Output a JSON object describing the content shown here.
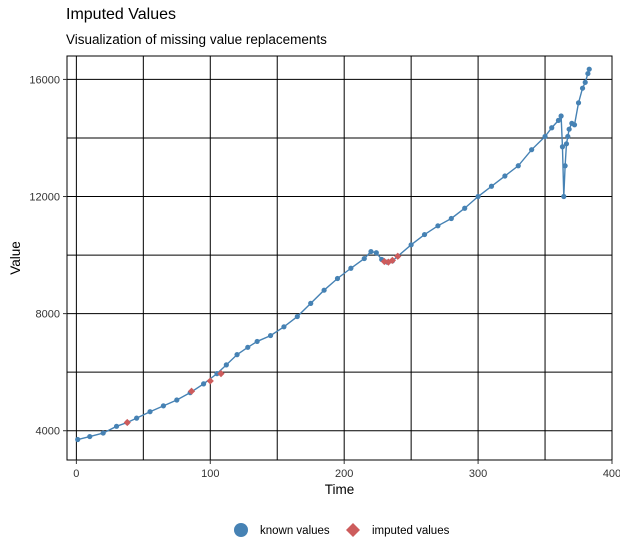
{
  "chart_data": {
    "type": "scatter",
    "title": "Imputed Values",
    "subtitle": "Visualization of missing value replacements",
    "xlabel": "Time",
    "ylabel": "Value",
    "xlim": [
      -7,
      400
    ],
    "ylim": [
      3000,
      16800
    ],
    "x_ticks": [
      0,
      100,
      200,
      300,
      400
    ],
    "y_ticks": [
      4000,
      8000,
      12000,
      16000
    ],
    "x_grid": [
      0,
      50,
      100,
      150,
      200,
      250,
      300,
      350,
      400
    ],
    "y_grid": [
      4000,
      6000,
      8000,
      10000,
      12000,
      14000,
      16000
    ],
    "grid": true,
    "legend_position": "bottom",
    "series": [
      {
        "name": "known values",
        "color": "#4682b4",
        "marker": "circle",
        "x": [
          1,
          10,
          20,
          30,
          38,
          45,
          55,
          65,
          75,
          85,
          95,
          105,
          112,
          120,
          128,
          135,
          145,
          155,
          165,
          175,
          185,
          195,
          205,
          215,
          220,
          224,
          228,
          232,
          236,
          240,
          250,
          260,
          270,
          280,
          290,
          300,
          310,
          320,
          330,
          340,
          350,
          355,
          360,
          362,
          363,
          364,
          365,
          366,
          367,
          368,
          370,
          372,
          375,
          378,
          380,
          382,
          383
        ],
        "y": [
          3700,
          3800,
          3920,
          4150,
          4280,
          4430,
          4650,
          4850,
          5050,
          5300,
          5600,
          5950,
          6250,
          6600,
          6850,
          7050,
          7250,
          7550,
          7900,
          8350,
          8800,
          9200,
          9550,
          9880,
          10120,
          10080,
          9850,
          9760,
          9800,
          9960,
          10350,
          10700,
          11000,
          11250,
          11600,
          12000,
          12350,
          12700,
          13050,
          13600,
          14050,
          14350,
          14600,
          14750,
          13700,
          12000,
          13050,
          13800,
          14050,
          14300,
          14500,
          14450,
          15200,
          15700,
          15900,
          16200,
          16350
        ]
      },
      {
        "name": "imputed values",
        "color": "#cd5c5c",
        "marker": "diamond",
        "x": [
          38,
          86,
          100,
          108,
          230,
          233,
          236,
          240
        ],
        "y": [
          4280,
          5350,
          5700,
          5950,
          9780,
          9760,
          9820,
          9960
        ]
      }
    ]
  }
}
